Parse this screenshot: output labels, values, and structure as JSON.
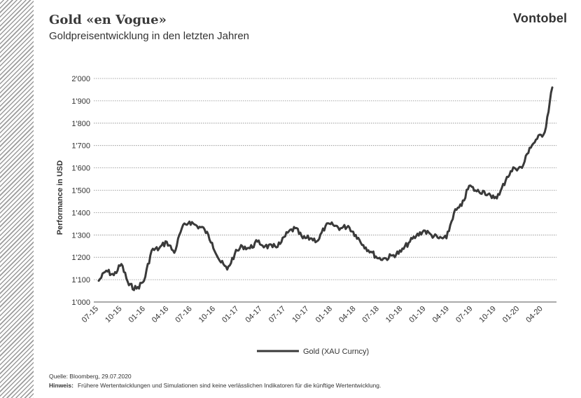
{
  "header": {
    "title": "Gold «en Vogue»",
    "subtitle": "Goldpreisentwicklung in den letzten Jahren",
    "brand": "Vontobel"
  },
  "footer": {
    "source": "Quelle: Bloomberg, 29.07.2020",
    "note_label": "Hinweis:",
    "note_text": "Frühere Wertentwicklungen und Simulationen sind keine verlässlichen Indikatoren für die künftige Wertentwicklung."
  },
  "colors": {
    "line": "#3a3a3a",
    "grid": "#8a8a8a",
    "stripes": "#9a9a9a"
  },
  "chart_data": {
    "type": "line",
    "title": "",
    "ylabel": "Performance in USD",
    "xlabel": "",
    "ylim": [
      1000,
      2000
    ],
    "yticks": [
      1000,
      1100,
      1200,
      1300,
      1400,
      1500,
      1600,
      1700,
      1800,
      1900,
      2000
    ],
    "ytick_labels": [
      "1'000",
      "1'100",
      "1'200",
      "1'300",
      "1'400",
      "1'500",
      "1'600",
      "1'700",
      "1'800",
      "1'900",
      "2'000"
    ],
    "xtick_labels": [
      "07-15",
      "10-15",
      "01-16",
      "04-16",
      "07-16",
      "10-16",
      "01-17",
      "04-17",
      "07-17",
      "10-17",
      "01-18",
      "04-18",
      "07-18",
      "10-18",
      "01-19",
      "04-19",
      "07-19",
      "10-19",
      "01-20",
      "04-20"
    ],
    "grid": true,
    "legend_position": "bottom-center",
    "series": [
      {
        "name": "Gold (XAU Curncy)",
        "x": [
          "2015-07",
          "2015-08",
          "2015-09",
          "2015-10",
          "2015-11",
          "2015-12",
          "2016-01",
          "2016-02",
          "2016-03",
          "2016-04",
          "2016-05",
          "2016-06",
          "2016-07",
          "2016-08",
          "2016-09",
          "2016-10",
          "2016-11",
          "2016-12",
          "2017-01",
          "2017-02",
          "2017-03",
          "2017-04",
          "2017-05",
          "2017-06",
          "2017-07",
          "2017-08",
          "2017-09",
          "2017-10",
          "2017-11",
          "2017-12",
          "2018-01",
          "2018-02",
          "2018-03",
          "2018-04",
          "2018-05",
          "2018-06",
          "2018-07",
          "2018-08",
          "2018-09",
          "2018-10",
          "2018-11",
          "2018-12",
          "2019-01",
          "2019-02",
          "2019-03",
          "2019-04",
          "2019-05",
          "2019-06",
          "2019-07",
          "2019-08",
          "2019-09",
          "2019-10",
          "2019-11",
          "2019-12",
          "2020-01",
          "2020-02",
          "2020-03",
          "2020-04",
          "2020-05",
          "2020-06",
          "2020-07"
        ],
        "values": [
          1095,
          1140,
          1120,
          1170,
          1075,
          1060,
          1095,
          1230,
          1240,
          1270,
          1220,
          1330,
          1360,
          1340,
          1325,
          1265,
          1185,
          1145,
          1215,
          1250,
          1240,
          1270,
          1250,
          1245,
          1260,
          1310,
          1330,
          1285,
          1285,
          1275,
          1340,
          1345,
          1330,
          1340,
          1300,
          1255,
          1225,
          1195,
          1195,
          1210,
          1225,
          1265,
          1295,
          1320,
          1300,
          1285,
          1285,
          1400,
          1430,
          1520,
          1495,
          1495,
          1465,
          1480,
          1560,
          1600,
          1600,
          1690,
          1730,
          1760,
          1960
        ]
      }
    ]
  }
}
